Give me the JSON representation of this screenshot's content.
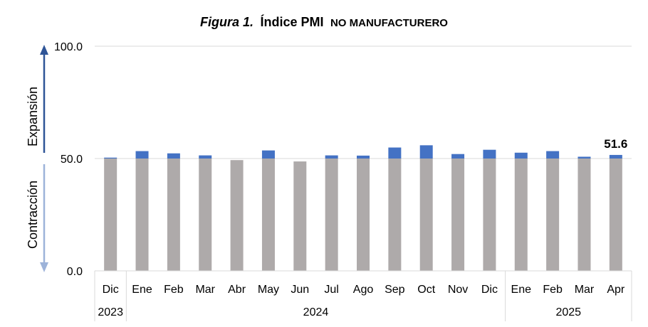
{
  "chart_data": {
    "type": "bar",
    "title_parts": {
      "figura": "Figura 1.",
      "indice": "Índice PMI",
      "rest": "no manufacturero"
    },
    "ylim": [
      0,
      100
    ],
    "yticks": [
      "0.0",
      "50.0",
      "100.0"
    ],
    "baseline": 50,
    "categories": [
      "Dic",
      "Ene",
      "Feb",
      "Mar",
      "Abr",
      "May",
      "Jun",
      "Jul",
      "Ago",
      "Sep",
      "Oct",
      "Nov",
      "Dic",
      "Ene",
      "Feb",
      "Mar",
      "Apr"
    ],
    "values": [
      50.4,
      53.3,
      52.3,
      51.4,
      49.3,
      53.6,
      48.7,
      51.4,
      51.3,
      54.9,
      55.9,
      52.0,
      53.9,
      52.6,
      53.3,
      50.8,
      51.6
    ],
    "years": [
      {
        "label": "2023",
        "span": 1
      },
      {
        "label": "2024",
        "span": 12
      },
      {
        "label": "2025",
        "span": 4
      }
    ],
    "data_label": {
      "index": 16,
      "text": "51.6"
    },
    "side_labels": {
      "upper": "Expansión",
      "lower": "Contracción"
    },
    "colors": {
      "base": "#aeaaaa",
      "expansion": "#4472c4",
      "arrow_upper": "#2f5597",
      "arrow_lower": "#9db3d9",
      "grid": "#d9d9d9"
    }
  }
}
